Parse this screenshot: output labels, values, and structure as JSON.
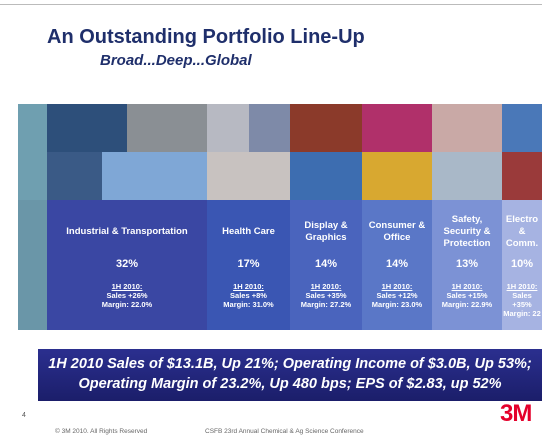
{
  "header": {
    "title": "An Outstanding Portfolio Line-Up",
    "subtitle": "Broad...Deep...Global"
  },
  "segments": [
    {
      "name": "Industrial & Transportation",
      "share": "32%",
      "period": "1H 2010:",
      "sales": "Sales +26%",
      "margin": "Margin: 22.0%"
    },
    {
      "name": "Health Care",
      "share": "17%",
      "period": "1H 2010:",
      "sales": "Sales +8%",
      "margin": "Margin: 31.0%"
    },
    {
      "name": "Display & Graphics",
      "share": "14%",
      "period": "1H 2010:",
      "sales": "Sales +35%",
      "margin": "Margin: 27.2%"
    },
    {
      "name": "Consumer & Office",
      "share": "14%",
      "period": "1H 2010:",
      "sales": "Sales +12%",
      "margin": "Margin: 23.0%"
    },
    {
      "name": "Safety, Security & Protection",
      "share": "13%",
      "period": "1H 2010:",
      "sales": "Sales +15%",
      "margin": "Margin: 22.9%"
    },
    {
      "name": "Electro & Comm.",
      "share": "10%",
      "period": "1H 2010:",
      "sales": "Sales +35%",
      "margin": "Margin: 22"
    }
  ],
  "banner": {
    "line1": "1H 2010 Sales of $13.1B, Up 21%; Operating Income of $3.0B, Up 53%;",
    "line2": "Operating Margin of 23.2%, Up 480 bps; EPS of $2.83, up 52%"
  },
  "footer": {
    "page": "4",
    "copyright": "© 3M 2010. All Rights Reserved",
    "event": "CSFB 23rd Annual Chemical & Ag Science Conference",
    "logo": "3M"
  }
}
